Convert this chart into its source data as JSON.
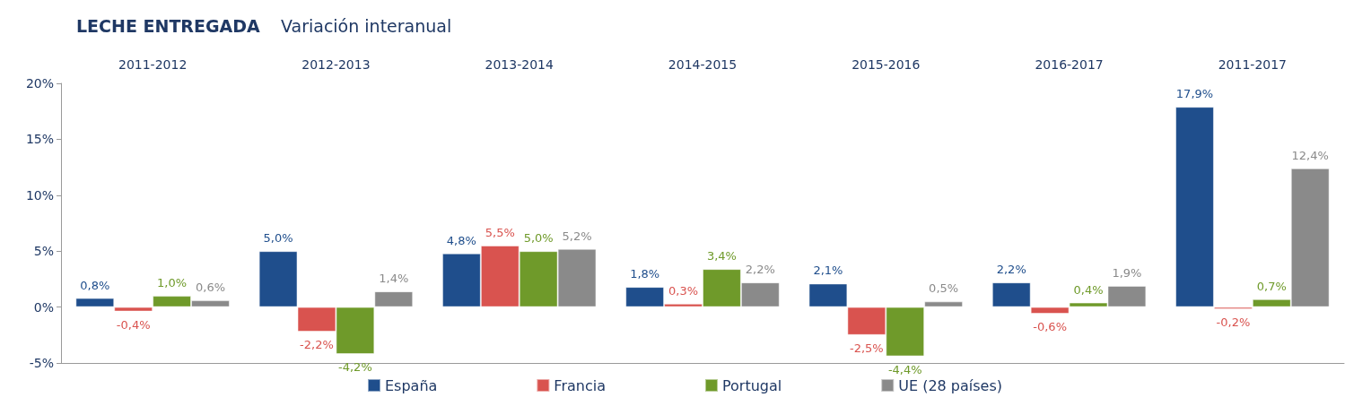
{
  "chart_data": {
    "type": "bar",
    "title": "LECHE ENTREGADA",
    "subtitle": "Variación interanual",
    "categories": [
      "2011-2012",
      "2012-2013",
      "2013-2014",
      "2014-2015",
      "2015-2016",
      "2016-2017",
      "2011-2017"
    ],
    "series": [
      {
        "name": "España",
        "color": "#1f4e8c",
        "values": [
          0.8,
          5.0,
          4.8,
          1.8,
          2.1,
          2.2,
          17.9
        ],
        "value_labels": [
          "0,8%",
          "5,0%",
          "4,8%",
          "1,8%",
          "2,1%",
          "2,2%",
          "17,9%"
        ]
      },
      {
        "name": "Francia",
        "color": "#d9534f",
        "values": [
          -0.4,
          -2.2,
          5.5,
          0.3,
          -2.5,
          -0.6,
          -0.2
        ],
        "value_labels": [
          "-0,4%",
          "-2,2%",
          "5,5%",
          "0,3%",
          "-2,5%",
          "-0,6%",
          "-0,2%"
        ]
      },
      {
        "name": "Portugal",
        "color": "#6f9a2a",
        "values": [
          1.0,
          -4.2,
          5.0,
          3.4,
          -4.4,
          0.4,
          0.7
        ],
        "value_labels": [
          "1,0%",
          "-4,2%",
          "5,0%",
          "3,4%",
          "-4,4%",
          "0,4%",
          "0,7%"
        ]
      },
      {
        "name": "UE (28 países)",
        "color": "#8a8a8a",
        "values": [
          0.6,
          1.4,
          5.2,
          2.2,
          0.5,
          1.9,
          12.4
        ],
        "value_labels": [
          "0,6%",
          "1,4%",
          "5,2%",
          "2,2%",
          "0,5%",
          "1,9%",
          "12,4%"
        ]
      }
    ],
    "ylim": [
      -5,
      20
    ],
    "yticks": [
      {
        "value": -5,
        "label": "-5%"
      },
      {
        "value": 0,
        "label": "0%"
      },
      {
        "value": 5,
        "label": "5%"
      },
      {
        "value": 10,
        "label": "10%"
      },
      {
        "value": 15,
        "label": "15%"
      },
      {
        "value": 20,
        "label": "20%"
      }
    ],
    "grid": false,
    "legend": "bottom"
  }
}
